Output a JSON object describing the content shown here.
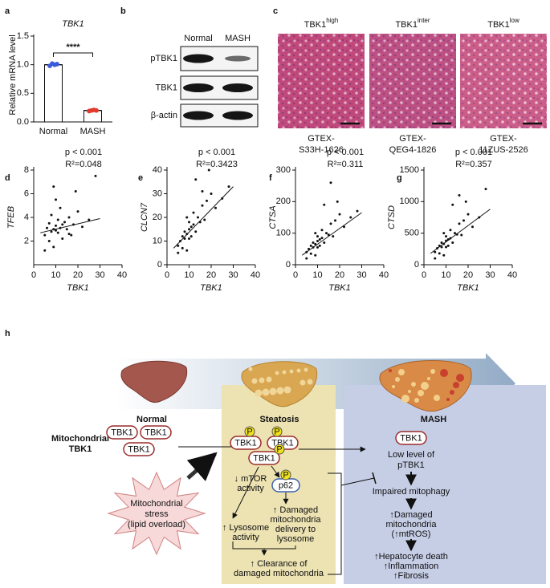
{
  "panel_labels": [
    "a",
    "b",
    "c",
    "d",
    "e",
    "f",
    "g",
    "h"
  ],
  "chart_data": [
    {
      "type": "bar",
      "title": "TBK1",
      "ylabel": "Relative mRNA level",
      "categories": [
        "Normal",
        "MASH"
      ],
      "values": [
        1.0,
        0.2
      ],
      "points": [
        [
          0.98,
          1.02,
          1.0,
          1.01
        ],
        [
          0.19,
          0.2,
          0.21,
          0.2
        ]
      ],
      "point_colors": [
        "#3a5bd9",
        "#e23b2e"
      ],
      "color": "#ffffff",
      "significance": "****",
      "ylim": [
        0,
        1.5
      ],
      "yticks": [
        {
          "value": 0,
          "label": "0.0"
        },
        0.5,
        {
          "value": 1,
          "label": "1.0"
        },
        1.5
      ]
    },
    {
      "type": "scatter",
      "ylabel": "TFEB",
      "xlabel": "TBK1",
      "annotations": [
        "p < 0.001",
        "R²=0.048"
      ],
      "x": [
        5,
        6,
        7,
        7,
        8,
        8,
        9,
        9,
        10,
        10,
        11,
        11,
        12,
        12,
        13,
        14,
        15,
        16,
        17,
        18,
        20,
        22,
        25,
        5,
        9,
        10,
        13,
        16,
        19,
        28
      ],
      "y": [
        2.5,
        3.1,
        2.0,
        3.5,
        2.8,
        4.2,
        3.0,
        1.5,
        3.3,
        5.5,
        2.7,
        3.8,
        3.1,
        4.8,
        2.2,
        3.6,
        3.0,
        4.0,
        2.5,
        3.4,
        4.5,
        3.2,
        3.8,
        1.2,
        6.6,
        2.9,
        3.4,
        2.6,
        6.2,
        7.5
      ],
      "fit_line": [
        [
          3,
          2.7
        ],
        [
          30,
          3.9
        ]
      ],
      "xlim": [
        0,
        40
      ],
      "xticks": [
        0,
        10,
        20,
        30,
        40
      ],
      "ylim": [
        0,
        8
      ],
      "yticks": [
        2,
        4,
        6,
        8
      ]
    },
    {
      "type": "scatter",
      "ylabel": "CLCN7",
      "xlabel": "TBK1",
      "annotations": [
        "p < 0.001",
        "R²=0.3423"
      ],
      "x": [
        5,
        6,
        7,
        7,
        8,
        8,
        9,
        9,
        10,
        10,
        11,
        11,
        12,
        12,
        13,
        14,
        15,
        16,
        17,
        18,
        20,
        22,
        25,
        5,
        9,
        10,
        13,
        16,
        19,
        28
      ],
      "y": [
        8,
        10,
        7,
        12,
        11,
        14,
        13,
        6,
        15,
        18,
        12,
        16,
        17,
        22,
        14,
        20,
        18,
        25,
        19,
        27,
        30,
        24,
        28,
        5,
        20,
        11,
        36,
        31,
        40,
        33
      ],
      "fit_line": [
        [
          3,
          7
        ],
        [
          30,
          33
        ]
      ],
      "xlim": [
        0,
        40
      ],
      "xticks": [
        0,
        10,
        20,
        30,
        40
      ],
      "ylim": [
        0,
        40
      ],
      "yticks": [
        0,
        10,
        20,
        30,
        40
      ]
    },
    {
      "type": "scatter",
      "ylabel": "CTSA",
      "xlabel": "TBK1",
      "annotations": [
        "p < 0.001",
        "R²=0.311"
      ],
      "x": [
        5,
        6,
        7,
        7,
        8,
        8,
        9,
        9,
        10,
        10,
        11,
        11,
        12,
        12,
        13,
        14,
        15,
        16,
        17,
        18,
        20,
        22,
        25,
        5,
        9,
        10,
        13,
        16,
        19,
        28
      ],
      "y": [
        40,
        50,
        35,
        60,
        55,
        70,
        65,
        30,
        75,
        90,
        60,
        80,
        85,
        110,
        70,
        100,
        95,
        130,
        90,
        140,
        160,
        120,
        150,
        20,
        100,
        55,
        190,
        260,
        200,
        170
      ],
      "fit_line": [
        [
          3,
          30
        ],
        [
          30,
          165
        ]
      ],
      "xlim": [
        0,
        40
      ],
      "xticks": [
        0,
        10,
        20,
        30,
        40
      ],
      "ylim": [
        0,
        300
      ],
      "yticks": [
        0,
        100,
        200,
        300
      ]
    },
    {
      "type": "scatter",
      "ylabel": "CTSD",
      "xlabel": "TBK1",
      "annotations": [
        "p < 0.001",
        "R²=0.357"
      ],
      "x": [
        5,
        6,
        7,
        7,
        8,
        8,
        9,
        9,
        10,
        10,
        11,
        11,
        12,
        12,
        13,
        14,
        15,
        16,
        17,
        18,
        20,
        22,
        25,
        5,
        9,
        10,
        13,
        16,
        19,
        28
      ],
      "y": [
        200,
        260,
        180,
        300,
        280,
        350,
        330,
        150,
        380,
        450,
        300,
        400,
        420,
        550,
        350,
        500,
        480,
        650,
        470,
        700,
        800,
        600,
        750,
        100,
        500,
        280,
        950,
        1100,
        1000,
        1200
      ],
      "fit_line": [
        [
          3,
          180
        ],
        [
          30,
          880
        ]
      ],
      "xlim": [
        0,
        40
      ],
      "xticks": [
        0,
        10,
        20,
        30,
        40
      ],
      "ylim": [
        0,
        1500
      ],
      "yticks": [
        0,
        500,
        1000,
        1500
      ]
    }
  ],
  "blot": {
    "columns": [
      "Normal",
      "MASH"
    ],
    "rows": [
      "pTBK1",
      "TBK1",
      "β-actin"
    ]
  },
  "histology": [
    {
      "title": "TBK1",
      "superscript": "high",
      "sample": [
        "GTEX-",
        "S33H-1626"
      ]
    },
    {
      "title": "TBK1",
      "superscript": "inter",
      "sample": [
        "GTEX-",
        "QEG4-1826"
      ]
    },
    {
      "title": "TBK1",
      "superscript": "low",
      "sample": [
        "GTEX-",
        "11ZUS-2526"
      ]
    }
  ],
  "diagram": {
    "stages": [
      "Normal",
      "Steatosis",
      "MASH"
    ],
    "mito_tbk1": [
      "Mitochondrial",
      "TBK1"
    ],
    "protein": "TBK1",
    "phospho": "P",
    "p62": "p62",
    "stress": [
      "Mitochondrial",
      "stress",
      "(lipid overload)"
    ],
    "mtor": [
      "↓ mTOR",
      "activity"
    ],
    "lysosome": [
      "↑ Lysosome",
      "activity"
    ],
    "delivery": [
      "↑ Damaged",
      "mitochondria",
      "delivery to",
      "lysosome"
    ],
    "clearance": [
      "↑ Clearance of",
      "damaged mitochondria"
    ],
    "low": [
      "Low level of",
      "pTBK1"
    ],
    "impaired": "Impaired mitophagy",
    "damaged": [
      "↑Damaged",
      "mitochondria",
      "(↑mtROS)"
    ],
    "outcomes": [
      "↑Hepatocyte death",
      "↑Inflammation",
      "↑Fibrosis"
    ]
  }
}
